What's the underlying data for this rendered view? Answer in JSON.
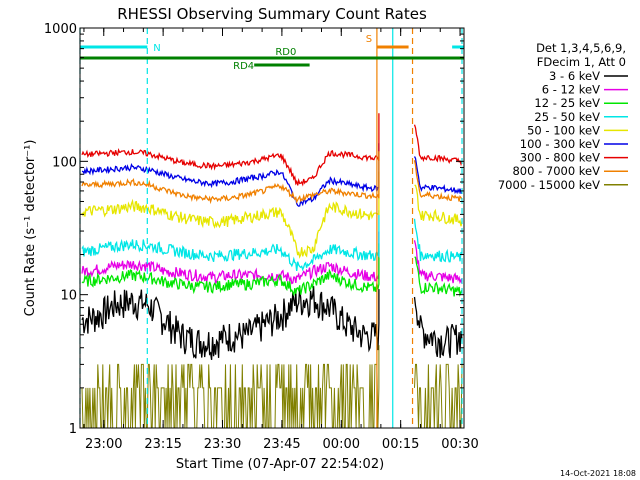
{
  "chart_data": {
    "type": "line",
    "title": "RHESSI Observing Summary Count Rates",
    "xlabel": "Start Time (07-Apr-07 22:54:02)",
    "ylabel": "Count Rate (s⁻¹ detector⁻¹)",
    "yscale": "log",
    "ylim": [
      1,
      1000
    ],
    "xlim_minutes": [
      0,
      97
    ],
    "x_ticks": [
      {
        "label": "23:00",
        "min": 6
      },
      {
        "label": "23:15",
        "min": 21
      },
      {
        "label": "23:30",
        "min": 36
      },
      {
        "label": "23:45",
        "min": 51
      },
      {
        "label": "00:00",
        "min": 66
      },
      {
        "label": "00:15",
        "min": 81
      },
      {
        "label": "00:30",
        "min": 96
      }
    ],
    "y_ticks": [
      {
        "label": "1",
        "value": 1
      },
      {
        "label": "10",
        "value": 10
      },
      {
        "label": "100",
        "value": 100
      },
      {
        "label": "1000",
        "value": 1000
      }
    ],
    "legend_header": [
      "Det 1,3,4,5,6,9,",
      "FDecim 1, Att 0"
    ],
    "series": [
      {
        "name": "3 - 6 keV",
        "color": "#000000",
        "values": [
          6.5,
          7,
          8.5,
          9,
          8.5,
          6.5,
          5,
          4.5,
          4.5,
          5,
          5,
          6,
          7,
          9,
          9.5,
          8,
          6,
          5,
          5,
          6,
          6,
          5,
          4.5,
          5
        ]
      },
      {
        "name": "6 - 12 keV",
        "color": "#e600e6",
        "values": [
          15,
          15.5,
          16.5,
          17,
          16.5,
          15,
          14.5,
          14,
          13.5,
          14,
          14,
          14,
          14,
          13,
          15,
          16.5,
          15,
          14,
          13.5,
          13,
          13.5,
          14,
          13.5,
          13
        ]
      },
      {
        "name": "12 - 25 keV",
        "color": "#00e600",
        "values": [
          12.5,
          13,
          13.5,
          14,
          13.5,
          12.5,
          12,
          11.5,
          11.5,
          12,
          12,
          12.5,
          13,
          10.5,
          12,
          14,
          12.5,
          11.5,
          11,
          10.5,
          11,
          11.5,
          11,
          10.5
        ]
      },
      {
        "name": "25 - 50 keV",
        "color": "#00e6e6",
        "values": [
          21,
          22,
          23,
          24,
          23.5,
          22,
          21,
          20,
          19.5,
          20,
          20.5,
          21,
          22,
          16,
          18,
          22,
          21,
          20,
          19.5,
          19,
          19.5,
          20,
          19.5,
          19
        ]
      },
      {
        "name": "50 - 100 keV",
        "color": "#e6e600",
        "values": [
          42,
          43,
          44,
          46,
          45,
          41,
          38,
          36,
          35,
          36,
          38,
          40,
          42,
          21,
          22,
          46,
          43,
          40,
          38,
          37,
          38,
          40,
          38,
          36
        ]
      },
      {
        "name": "100 - 300 keV",
        "color": "#0000e6",
        "values": [
          84,
          86,
          88,
          90,
          87,
          80,
          74,
          70,
          68,
          70,
          74,
          78,
          84,
          48,
          52,
          72,
          68,
          64,
          62,
          61,
          62,
          64,
          62,
          60
        ]
      },
      {
        "name": "300 - 800 keV",
        "color": "#e60000",
        "values": [
          112,
          114,
          116,
          118,
          114,
          106,
          98,
          94,
          92,
          94,
          98,
          104,
          112,
          68,
          74,
          116,
          112,
          108,
          104,
          102,
          104,
          108,
          104,
          100
        ]
      },
      {
        "name": "800 - 7000 keV",
        "color": "#f08000",
        "values": [
          66,
          67,
          68,
          70,
          67,
          61,
          56,
          53,
          52,
          53,
          56,
          60,
          66,
          52,
          56,
          60,
          58,
          56,
          54,
          53,
          54,
          56,
          54,
          52
        ]
      },
      {
        "name": "7000 - 15000 keV",
        "color": "#808000",
        "values": [
          1.9,
          2,
          2,
          1.9,
          2,
          1.9,
          1.8,
          1.9,
          2,
          1.9,
          2,
          2.1,
          2.6,
          3,
          3,
          2.8,
          2.4,
          2,
          1.9,
          1.8,
          1.9,
          2,
          1.9,
          1.9
        ]
      }
    ],
    "flags": [
      {
        "label": "N",
        "color": "#00e6e6",
        "segments": [
          [
            0,
            17
          ],
          [
            94,
            97
          ]
        ],
        "row": "top"
      },
      {
        "label": "S",
        "color": "#f08000",
        "segments": [
          [
            75,
            83
          ]
        ],
        "row": "top"
      },
      {
        "label": "RD0",
        "color": "#008000",
        "segments": [
          [
            0,
            97
          ]
        ],
        "row": "mid"
      },
      {
        "label": "RD4",
        "color": "#008000",
        "segments": [
          [
            44,
            58
          ]
        ],
        "row": "low"
      }
    ],
    "vertical_markers": [
      {
        "min": 0,
        "color": "#00e6e6",
        "style": "dashed"
      },
      {
        "min": 17,
        "color": "#00e6e6",
        "style": "dashed"
      },
      {
        "min": 75,
        "color": "#f08000",
        "style": "solid"
      },
      {
        "min": 79,
        "color": "#00e6e6",
        "style": "solid"
      },
      {
        "min": 84,
        "color": "#f08000",
        "style": "dashed"
      },
      {
        "min": 96.5,
        "color": "#00e6e6",
        "style": "dashed"
      }
    ],
    "footer_date": "14-Oct-2021 18:08"
  }
}
